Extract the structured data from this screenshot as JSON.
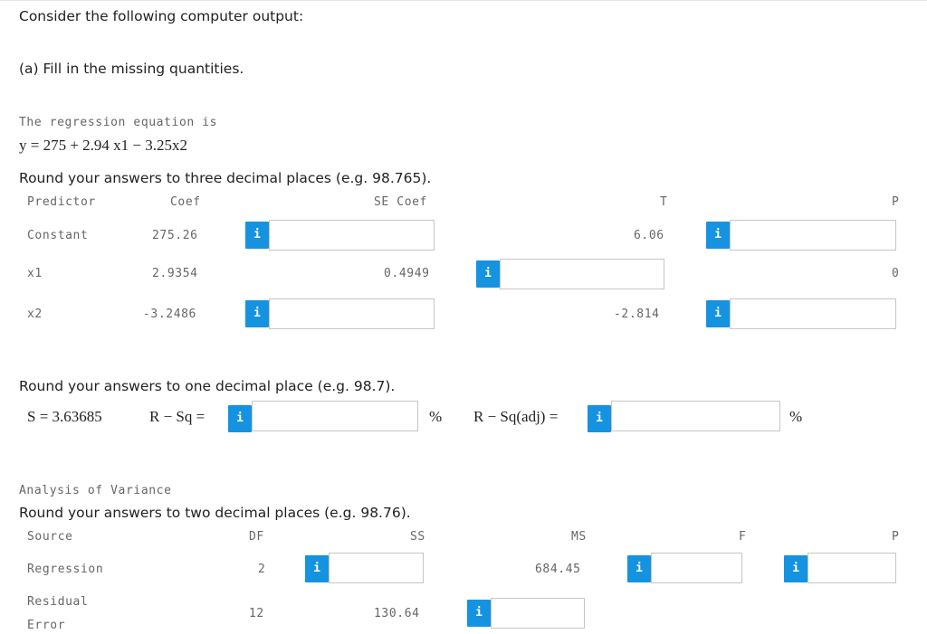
{
  "intro": "Consider the following computer output:",
  "part_a": "(a) Fill in the missing quantities.",
  "regression": {
    "label": "The regression equation is",
    "equation": "y = 275 + 2.94 x1 − 3.25x2"
  },
  "coef_table": {
    "instruction": "Round your answers to three decimal places (e.g. 98.765).",
    "headers": [
      "Predictor",
      "Coef",
      "SE Coef",
      "T",
      "P"
    ],
    "rows": [
      {
        "predictor": "Constant",
        "coef": "275.26",
        "se_coef": "",
        "t": "6.06",
        "p": ""
      },
      {
        "predictor": "x1",
        "coef": "2.9354",
        "se_coef": "0.4949",
        "t": "",
        "p": "0"
      },
      {
        "predictor": "x2",
        "coef": "-3.2486",
        "se_coef": "",
        "t": "-2.814",
        "p": ""
      }
    ]
  },
  "summary": {
    "instruction": "Round your answers to one decimal place (e.g. 98.7).",
    "s_label": "S = 3.63685",
    "rsq_label": "R − Sq =",
    "rsq_adj_label": "R − Sq(adj) =",
    "percent": "%"
  },
  "anova": {
    "title": "Analysis of Variance",
    "instruction": "Round your answers to two decimal places (e.g. 98.76).",
    "headers": [
      "Source",
      "DF",
      "SS",
      "MS",
      "F",
      "P"
    ],
    "rows": [
      {
        "source": "Regression",
        "df": "2",
        "ss": "",
        "ms": "684.45",
        "f": "",
        "p": ""
      },
      {
        "source_line1": "Residual",
        "source_line2": "Error",
        "df": "12",
        "ss": "130.64",
        "ms": ""
      }
    ]
  },
  "info_button": "i"
}
